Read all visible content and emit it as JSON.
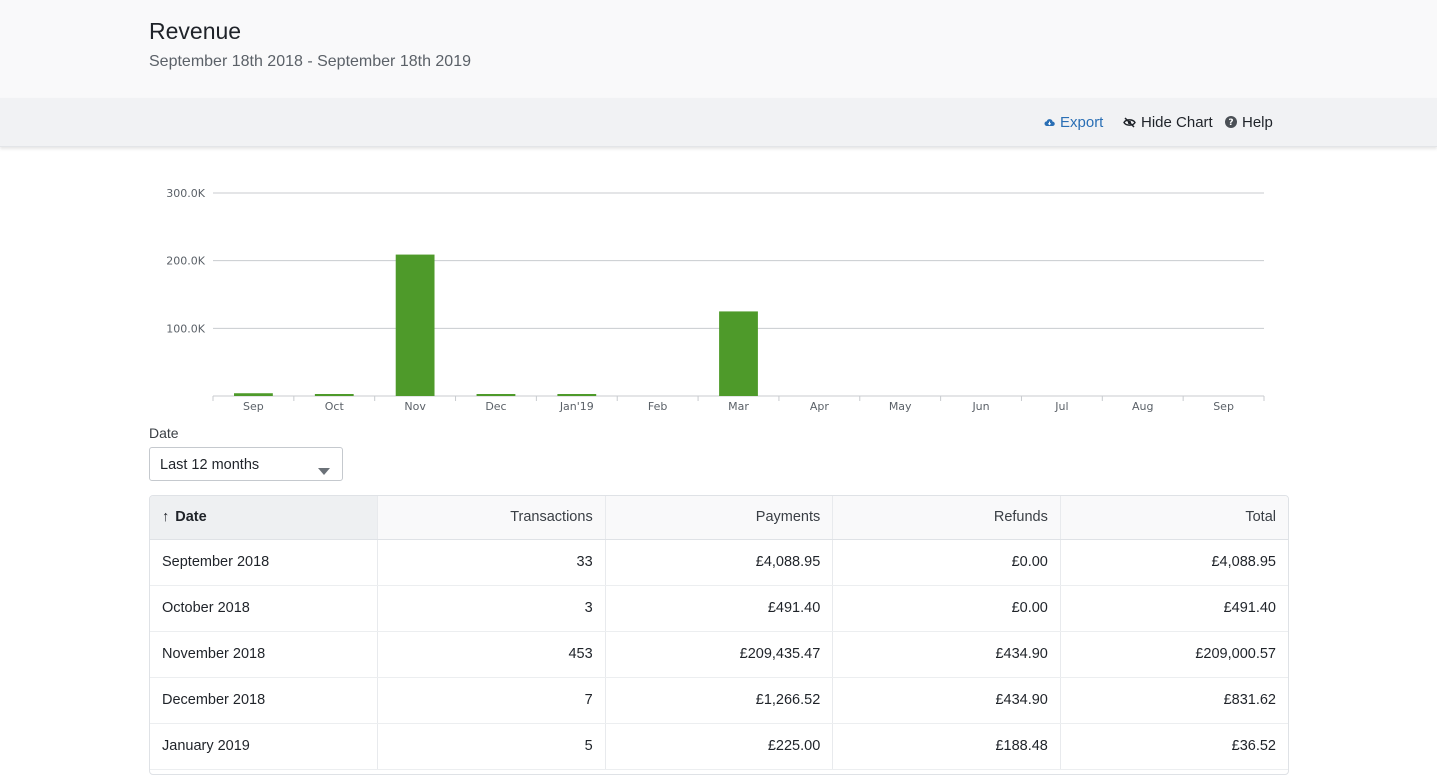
{
  "header": {
    "title": "Revenue",
    "date_range": "September 18th 2018 - September 18th 2019"
  },
  "toolbar": {
    "export_label": "Export",
    "export_icon": "cloud-download-icon",
    "hide_chart_label": "Hide Chart",
    "hide_chart_icon": "eye-slash-icon",
    "help_label": "Help",
    "help_icon": "question-circle-icon",
    "accent_color": "#2a6fb5"
  },
  "chart_data": {
    "type": "bar",
    "categories": [
      "Sep",
      "Oct",
      "Nov",
      "Dec",
      "Jan'19",
      "Feb",
      "Mar",
      "Apr",
      "May",
      "Jun",
      "Jul",
      "Aug",
      "Sep"
    ],
    "values": [
      4088.95,
      491.4,
      209000.57,
      831.62,
      36.52,
      0,
      125000,
      0,
      0,
      0,
      0,
      0,
      0
    ],
    "y_ticks": [
      100000,
      200000,
      300000
    ],
    "y_tick_labels": [
      "100.0K",
      "200.0K",
      "300.0K"
    ],
    "ylim": [
      0,
      300000
    ],
    "grid": true,
    "bar_color": "#4e9a2a",
    "title": "",
    "xlabel": "",
    "ylabel": ""
  },
  "filter": {
    "label": "Date",
    "selected": "Last 12 months"
  },
  "table": {
    "columns": [
      "Date",
      "Transactions",
      "Payments",
      "Refunds",
      "Total"
    ],
    "sorted_column_arrow": "↑",
    "rows": [
      [
        "September 2018",
        "33",
        "£4,088.95",
        "£0.00",
        "£4,088.95"
      ],
      [
        "October 2018",
        "3",
        "£491.40",
        "£0.00",
        "£491.40"
      ],
      [
        "November 2018",
        "453",
        "£209,435.47",
        "£434.90",
        "£209,000.57"
      ],
      [
        "December 2018",
        "7",
        "£1,266.52",
        "£434.90",
        "£831.62"
      ],
      [
        "January 2019",
        "5",
        "£225.00",
        "£188.48",
        "£36.52"
      ]
    ]
  }
}
